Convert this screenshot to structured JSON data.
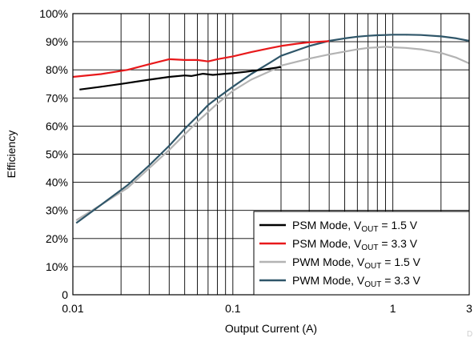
{
  "chart_data": {
    "type": "line",
    "xlabel": "Output Current (A)",
    "ylabel": "Efficiency",
    "x_scale": "log",
    "xlim": [
      0.01,
      3
    ],
    "ylim": [
      0,
      100
    ],
    "x_ticks": [
      0.01,
      0.1,
      1,
      3
    ],
    "x_tick_labels": [
      "0.01",
      "0.1",
      "1",
      "3"
    ],
    "y_ticks": [
      0,
      10,
      20,
      30,
      40,
      50,
      60,
      70,
      80,
      90,
      100
    ],
    "y_tick_labels": [
      "0",
      "10%",
      "20%",
      "30%",
      "40%",
      "50%",
      "60%",
      "70%",
      "80%",
      "90%",
      "100%"
    ],
    "grid": true,
    "legend_position": "bottom-right",
    "series": [
      {
        "name": "PSM Mode, V_OUT = 1.5 V",
        "legend_main": "PSM Mode, V",
        "legend_sub": "OUT",
        "legend_tail": " = 1.5 V",
        "color": "#000000",
        "x": [
          0.011,
          0.015,
          0.02,
          0.03,
          0.04,
          0.05,
          0.055,
          0.065,
          0.075,
          0.085,
          0.1,
          0.12,
          0.15,
          0.2
        ],
        "y": [
          73,
          74,
          75,
          76.5,
          77.5,
          78,
          77.8,
          78.6,
          78.2,
          78.5,
          78.8,
          79.3,
          80,
          81
        ]
      },
      {
        "name": "PSM Mode, V_OUT = 3.3 V",
        "legend_main": "PSM Mode, V",
        "legend_sub": "OUT",
        "legend_tail": " = 3.3 V",
        "color": "#e8191b",
        "x": [
          0.01,
          0.015,
          0.022,
          0.03,
          0.04,
          0.05,
          0.06,
          0.07,
          0.08,
          0.1,
          0.13,
          0.17,
          0.2,
          0.25,
          0.3,
          0.4
        ],
        "y": [
          77.5,
          78.5,
          80,
          82,
          83.8,
          83.5,
          83.5,
          83,
          83.8,
          84.8,
          86.3,
          87.7,
          88.5,
          89.3,
          89.8,
          90.2
        ]
      },
      {
        "name": "PWM Mode, V_OUT = 1.5 V",
        "legend_main": "PWM Mode, V",
        "legend_sub": "OUT",
        "legend_tail": " = 1.5 V",
        "color": "#b3b3b3",
        "x": [
          0.0105,
          0.015,
          0.022,
          0.03,
          0.04,
          0.05,
          0.06,
          0.07,
          0.08,
          0.1,
          0.13,
          0.17,
          0.2,
          0.3,
          0.4,
          0.5,
          0.6,
          0.7,
          0.8,
          0.9,
          1.0,
          1.2,
          1.5,
          2.0,
          2.5,
          3.0
        ],
        "y": [
          26.5,
          32,
          38,
          45,
          51.5,
          57,
          61.5,
          65,
          68,
          72.5,
          76.5,
          79.5,
          81.5,
          84,
          85.5,
          86.5,
          87.3,
          87.8,
          88,
          88.2,
          88,
          87.8,
          87.3,
          86,
          84.3,
          82.3
        ]
      },
      {
        "name": "PWM Mode, V_OUT = 3.3 V",
        "legend_main": "PWM Mode, V",
        "legend_sub": "OUT",
        "legend_tail": " = 3.3 V",
        "color": "#2f5669",
        "x": [
          0.0105,
          0.015,
          0.022,
          0.03,
          0.04,
          0.05,
          0.06,
          0.07,
          0.08,
          0.1,
          0.13,
          0.17,
          0.2,
          0.3,
          0.4,
          0.5,
          0.6,
          0.7,
          0.8,
          0.9,
          1.0,
          1.2,
          1.5,
          2.0,
          2.5,
          3.0
        ],
        "y": [
          25.5,
          32,
          39,
          46,
          53,
          59,
          63.5,
          67.5,
          70,
          74,
          78.5,
          82.5,
          85,
          88.5,
          90.3,
          91.2,
          91.8,
          92.1,
          92.3,
          92.4,
          92.5,
          92.5,
          92.4,
          91.9,
          91.2,
          90.3
        ]
      }
    ],
    "corner_mark": "D"
  }
}
